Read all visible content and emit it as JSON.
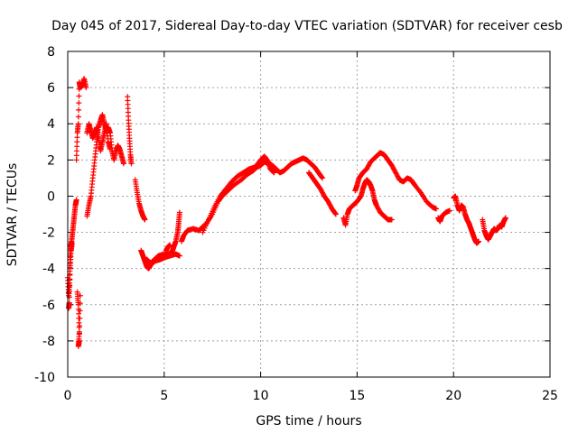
{
  "chart_data": {
    "type": "scatter",
    "title": "Day 045 of 2017, Sidereal Day-to-day VTEC variation (SDTVAR) for receiver cesb",
    "xlabel": "GPS time / hours",
    "ylabel": "SDTVAR / TECUs",
    "xlim": [
      0,
      25
    ],
    "ylim": [
      -10,
      8
    ],
    "xticks": [
      0,
      5,
      10,
      15,
      20,
      25
    ],
    "yticks": [
      -10,
      -8,
      -6,
      -4,
      -2,
      0,
      2,
      4,
      6,
      8
    ],
    "grid": true,
    "marker": "+",
    "color": "#ff0000",
    "segments": [
      [
        [
          0.0,
          -4.5
        ],
        [
          0.05,
          -5.5
        ],
        [
          0.1,
          -4.8
        ],
        [
          0.12,
          -3.5
        ],
        [
          0.15,
          -2.8
        ],
        [
          0.2,
          -2.5
        ],
        [
          0.25,
          -2.0
        ],
        [
          0.3,
          -1.5
        ],
        [
          0.35,
          -1.0
        ],
        [
          0.4,
          -0.5
        ],
        [
          0.45,
          -0.2
        ]
      ],
      [
        [
          0.05,
          -6.2
        ],
        [
          0.08,
          -5.9
        ],
        [
          0.12,
          -4.0
        ],
        [
          0.18,
          -3.0
        ],
        [
          0.22,
          -2.6
        ]
      ],
      [
        [
          0.45,
          2.0
        ],
        [
          0.5,
          3.5
        ],
        [
          0.55,
          4.0
        ],
        [
          0.6,
          6.3
        ],
        [
          0.65,
          6.0
        ],
        [
          0.75,
          6.1
        ],
        [
          0.85,
          6.5
        ],
        [
          0.95,
          6.0
        ]
      ],
      [
        [
          0.5,
          -5.3
        ],
        [
          0.55,
          -6.0
        ],
        [
          0.6,
          -7.5
        ],
        [
          0.55,
          -8.3
        ],
        [
          0.6,
          -8.0
        ],
        [
          0.65,
          -5.5
        ]
      ],
      [
        [
          1.0,
          -1.1
        ],
        [
          1.1,
          -0.5
        ],
        [
          1.2,
          0.0
        ],
        [
          1.3,
          1.0
        ],
        [
          1.4,
          2.0
        ],
        [
          1.5,
          3.0
        ],
        [
          1.6,
          3.8
        ],
        [
          1.7,
          4.2
        ],
        [
          1.8,
          4.5
        ],
        [
          1.9,
          4.0
        ],
        [
          2.0,
          3.6
        ],
        [
          2.1,
          3.8
        ],
        [
          2.2,
          3.5
        ],
        [
          2.3,
          2.5
        ],
        [
          2.4,
          2.0
        ],
        [
          2.5,
          2.5
        ],
        [
          2.6,
          2.8
        ],
        [
          2.7,
          2.6
        ],
        [
          2.8,
          2.2
        ],
        [
          2.9,
          1.8
        ]
      ],
      [
        [
          1.0,
          3.5
        ],
        [
          1.1,
          4.0
        ],
        [
          1.2,
          3.6
        ],
        [
          1.3,
          3.2
        ],
        [
          1.4,
          3.5
        ],
        [
          1.5,
          3.8
        ],
        [
          1.6,
          3.2
        ],
        [
          1.7,
          2.5
        ],
        [
          1.8,
          3.0
        ],
        [
          1.9,
          3.5
        ],
        [
          2.0,
          4.0
        ],
        [
          2.1,
          3.0
        ],
        [
          2.2,
          2.6
        ]
      ],
      [
        [
          3.1,
          5.5
        ],
        [
          3.15,
          4.2
        ],
        [
          3.2,
          3.2
        ],
        [
          3.25,
          2.3
        ],
        [
          3.3,
          1.8
        ]
      ],
      [
        [
          3.5,
          0.9
        ],
        [
          3.6,
          0.2
        ],
        [
          3.7,
          -0.4
        ],
        [
          3.8,
          -0.8
        ],
        [
          3.9,
          -1.1
        ],
        [
          4.0,
          -1.3
        ]
      ],
      [
        [
          3.8,
          -3.0
        ],
        [
          3.9,
          -3.3
        ],
        [
          4.0,
          -3.6
        ],
        [
          4.1,
          -3.9
        ],
        [
          4.2,
          -4.0
        ],
        [
          4.3,
          -3.8
        ],
        [
          4.5,
          -3.6
        ],
        [
          4.8,
          -3.5
        ],
        [
          5.0,
          -3.4
        ],
        [
          5.3,
          -3.3
        ],
        [
          5.6,
          -3.2
        ],
        [
          5.8,
          -3.3
        ]
      ],
      [
        [
          4.1,
          -3.5
        ],
        [
          4.3,
          -3.7
        ],
        [
          4.5,
          -3.5
        ],
        [
          4.7,
          -3.3
        ],
        [
          5.0,
          -3.2
        ],
        [
          5.2,
          -3.2
        ],
        [
          5.4,
          -3.1
        ],
        [
          5.5,
          -2.8
        ],
        [
          5.6,
          -2.5
        ],
        [
          5.7,
          -2.0
        ],
        [
          5.75,
          -1.5
        ],
        [
          5.8,
          -0.9
        ]
      ],
      [
        [
          5.1,
          -3.0
        ],
        [
          5.2,
          -2.8
        ],
        [
          5.3,
          -2.7
        ]
      ],
      [
        [
          5.9,
          -2.5
        ],
        [
          6.0,
          -2.2
        ],
        [
          6.2,
          -1.9
        ],
        [
          6.5,
          -1.8
        ],
        [
          6.8,
          -1.9
        ],
        [
          7.0,
          -1.7
        ],
        [
          7.2,
          -1.5
        ],
        [
          7.5,
          -1.0
        ],
        [
          7.8,
          -0.3
        ],
        [
          8.0,
          0.0
        ],
        [
          8.3,
          0.3
        ],
        [
          8.6,
          0.6
        ],
        [
          9.0,
          0.9
        ],
        [
          9.3,
          1.2
        ],
        [
          9.6,
          1.4
        ],
        [
          9.8,
          1.6
        ],
        [
          10.0,
          1.7
        ],
        [
          10.2,
          1.9
        ],
        [
          10.4,
          1.8
        ],
        [
          10.6,
          1.7
        ],
        [
          10.8,
          1.5
        ],
        [
          11.0,
          1.3
        ],
        [
          11.2,
          1.4
        ],
        [
          11.4,
          1.6
        ],
        [
          11.6,
          1.8
        ],
        [
          11.8,
          1.9
        ],
        [
          12.0,
          2.0
        ],
        [
          12.2,
          2.1
        ],
        [
          12.4,
          2.0
        ],
        [
          12.6,
          1.8
        ],
        [
          12.8,
          1.6
        ],
        [
          13.0,
          1.3
        ],
        [
          13.2,
          1.0
        ]
      ],
      [
        [
          7.0,
          -2.0
        ],
        [
          7.3,
          -1.3
        ],
        [
          7.6,
          -0.6
        ],
        [
          7.9,
          0.0
        ],
        [
          8.2,
          0.4
        ],
        [
          8.5,
          0.8
        ],
        [
          8.8,
          1.1
        ],
        [
          9.1,
          1.3
        ],
        [
          9.4,
          1.5
        ],
        [
          9.7,
          1.6
        ],
        [
          10.0,
          2.0
        ],
        [
          10.2,
          2.2
        ],
        [
          10.4,
          1.9
        ],
        [
          10.5,
          1.5
        ],
        [
          10.7,
          1.3
        ]
      ],
      [
        [
          12.5,
          1.3
        ],
        [
          12.7,
          1.0
        ],
        [
          12.9,
          0.7
        ],
        [
          13.1,
          0.4
        ],
        [
          13.3,
          0.0
        ],
        [
          13.5,
          -0.3
        ],
        [
          13.7,
          -0.7
        ],
        [
          13.9,
          -1.0
        ]
      ],
      [
        [
          14.3,
          -1.2
        ],
        [
          14.4,
          -1.6
        ],
        [
          14.5,
          -1.0
        ],
        [
          14.6,
          -0.7
        ],
        [
          14.8,
          -0.5
        ],
        [
          15.0,
          -0.3
        ],
        [
          15.2,
          0.0
        ],
        [
          15.3,
          0.4
        ],
        [
          15.4,
          0.7
        ],
        [
          15.5,
          0.9
        ],
        [
          15.6,
          0.8
        ],
        [
          15.7,
          0.6
        ],
        [
          15.8,
          0.3
        ],
        [
          15.9,
          -0.2
        ],
        [
          16.0,
          -0.5
        ],
        [
          16.2,
          -0.9
        ],
        [
          16.4,
          -1.1
        ],
        [
          16.6,
          -1.3
        ],
        [
          16.8,
          -1.3
        ]
      ],
      [
        [
          14.9,
          0.3
        ],
        [
          15.0,
          0.6
        ],
        [
          15.1,
          1.0
        ],
        [
          15.3,
          1.3
        ],
        [
          15.5,
          1.5
        ],
        [
          15.7,
          1.9
        ],
        [
          16.0,
          2.2
        ],
        [
          16.2,
          2.4
        ],
        [
          16.4,
          2.3
        ],
        [
          16.6,
          2.0
        ],
        [
          16.8,
          1.7
        ],
        [
          17.0,
          1.3
        ],
        [
          17.2,
          0.9
        ],
        [
          17.4,
          0.8
        ],
        [
          17.6,
          1.0
        ],
        [
          17.8,
          0.9
        ],
        [
          18.0,
          0.6
        ],
        [
          18.3,
          0.2
        ],
        [
          18.6,
          -0.3
        ],
        [
          18.9,
          -0.6
        ],
        [
          19.1,
          -0.7
        ]
      ],
      [
        [
          19.2,
          -1.2
        ],
        [
          19.3,
          -1.4
        ],
        [
          19.4,
          -1.1
        ],
        [
          19.6,
          -0.9
        ],
        [
          19.8,
          -0.8
        ]
      ],
      [
        [
          20.0,
          -0.1
        ],
        [
          20.1,
          0.0
        ],
        [
          20.2,
          -0.5
        ],
        [
          20.3,
          -0.8
        ],
        [
          20.4,
          -0.5
        ],
        [
          20.5,
          -0.6
        ],
        [
          20.6,
          -1.0
        ],
        [
          20.7,
          -1.3
        ],
        [
          20.8,
          -1.5
        ],
        [
          20.9,
          -1.8
        ],
        [
          21.0,
          -2.1
        ],
        [
          21.1,
          -2.4
        ],
        [
          21.2,
          -2.6
        ],
        [
          21.3,
          -2.5
        ]
      ],
      [
        [
          21.5,
          -1.3
        ],
        [
          21.6,
          -1.9
        ],
        [
          21.7,
          -2.2
        ],
        [
          21.8,
          -2.4
        ],
        [
          21.9,
          -2.2
        ],
        [
          22.0,
          -2.0
        ],
        [
          22.1,
          -1.8
        ],
        [
          22.2,
          -1.9
        ],
        [
          22.3,
          -1.8
        ],
        [
          22.4,
          -1.6
        ],
        [
          22.5,
          -1.7
        ],
        [
          22.6,
          -1.4
        ],
        [
          22.7,
          -1.2
        ]
      ]
    ]
  }
}
